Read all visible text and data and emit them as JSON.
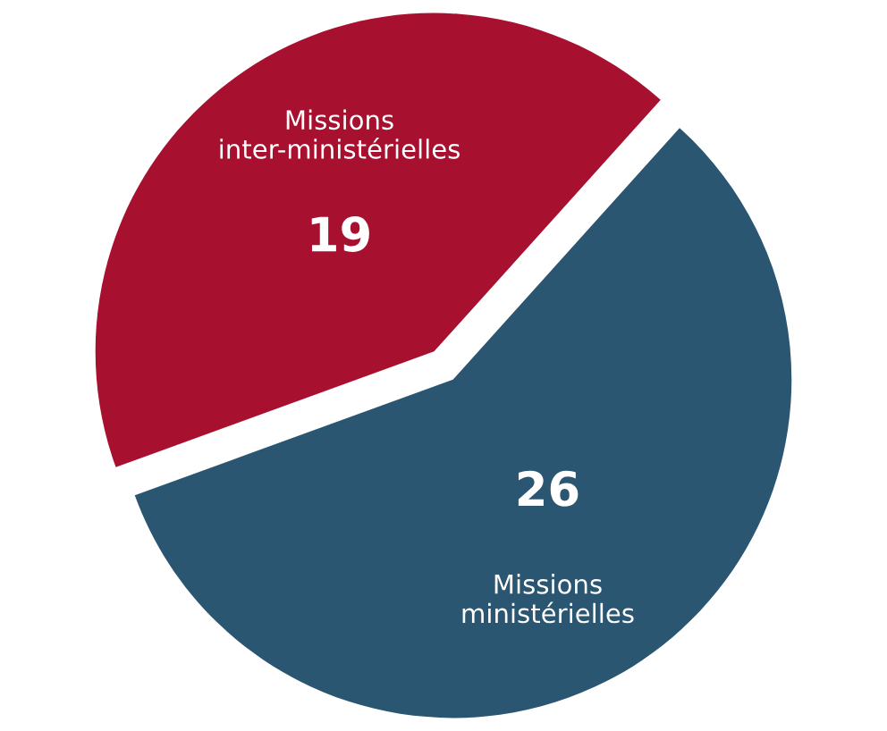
{
  "chart_data": {
    "type": "pie",
    "categories": [
      "Missions inter-ministérielles",
      "Missions ministérielles"
    ],
    "values": [
      19,
      26
    ],
    "colors": [
      "#a8102f",
      "#2b5672"
    ],
    "data_labels": true,
    "legend": false
  }
}
